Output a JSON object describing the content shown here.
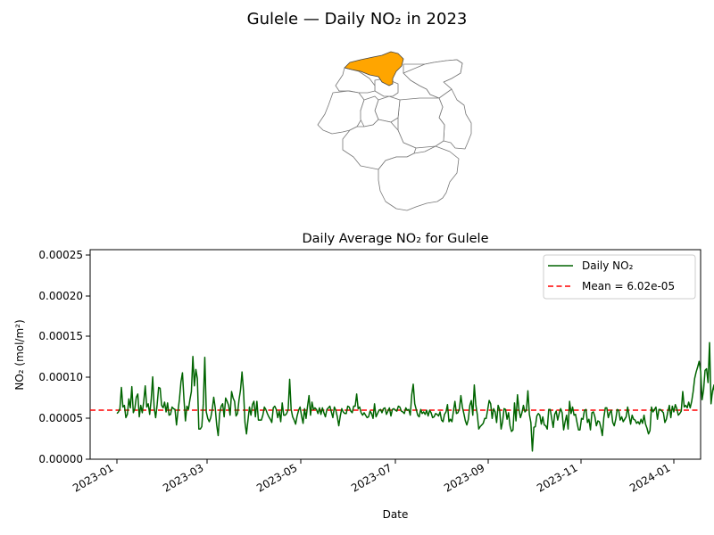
{
  "figure": {
    "suptitle": "Gulele — Daily NO₂ in 2023"
  },
  "map": {
    "highlight_color": "#ffa500",
    "district_fill": "#ffffff",
    "district_edge": "#777777"
  },
  "chart_data": {
    "type": "line",
    "title": "Daily Average NO₂ for Gulele",
    "xlabel": "Date",
    "ylabel": "NO₂ (mol/m²)",
    "x_ticks": [
      "2023-01",
      "2023-03",
      "2023-05",
      "2023-07",
      "2023-09",
      "2023-11",
      "2024-01"
    ],
    "y_ticks": [
      "0.00000",
      "0.00005",
      "0.00010",
      "0.00015",
      "0.00020",
      "0.00025"
    ],
    "xlim": [
      "2022-12-14",
      "2024-01-28"
    ],
    "ylim": [
      0,
      0.000257
    ],
    "grid": false,
    "legend_position": "upper right",
    "series": [
      {
        "name": "Daily NO₂",
        "color": "#006400",
        "start_date": "2023-01-01",
        "values": [
          5.6e-05,
          5.8e-05,
          6.2e-05,
          8.8e-05,
          6.4e-05,
          6.6e-05,
          5.1e-05,
          5.5e-05,
          7.4e-05,
          6.3e-05,
          8.9e-05,
          5.7e-05,
          6.2e-05,
          7.6e-05,
          8e-05,
          5.2e-05,
          6.6e-05,
          5.7e-05,
          7.1e-05,
          9e-05,
          6.4e-05,
          6.8e-05,
          5.5e-05,
          7.3e-05,
          0.000101,
          6.3e-05,
          5.1e-05,
          6.7e-05,
          8.8e-05,
          8.7e-05,
          6.6e-05,
          6.3e-05,
          7e-05,
          5.8e-05,
          6.9e-05,
          5.4e-05,
          5.5e-05,
          6.4e-05,
          6.2e-05,
          6.1e-05,
          4.2e-05,
          5.9e-05,
          7.4e-05,
          9.5e-05,
          0.000106,
          7.4e-05,
          4.7e-05,
          6.5e-05,
          6.1e-05,
          7.3e-05,
          8.3e-05,
          0.000126,
          9e-05,
          0.00011,
          9.9e-05,
          3.7e-05,
          3.7e-05,
          4e-05,
          6.8e-05,
          0.000125,
          5.8e-05,
          5e-05,
          4.6e-05,
          5.1e-05,
          6.1e-05,
          7.6e-05,
          6.3e-05,
          4.2e-05,
          2.9e-05,
          5.6e-05,
          6.5e-05,
          6.8e-05,
          5.2e-05,
          7.5e-05,
          7.1e-05,
          6.6e-05,
          5.4e-05,
          8.3e-05,
          7.5e-05,
          7.1e-05,
          5.3e-05,
          5.6e-05,
          7.3e-05,
          8.5e-05,
          0.000107,
          8.4e-05,
          4.5e-05,
          3.1e-05,
          4.8e-05,
          6.4e-05,
          5.4e-05,
          6.7e-05,
          7.1e-05,
          5.2e-05,
          7.1e-05,
          4.8e-05,
          4.8e-05,
          4.8e-05,
          5.4e-05,
          6.4e-05,
          6.1e-05,
          5.6e-05,
          5.2e-05,
          4.9e-05,
          4.5e-05,
          6.3e-05,
          6.5e-05,
          6.1e-05,
          5.1e-05,
          5.9e-05,
          4.6e-05,
          6.9e-05,
          5.4e-05,
          5.4e-05,
          5.6e-05,
          6.1e-05,
          9.8e-05,
          6.1e-05,
          5.2e-05,
          4.8e-05,
          4.3e-05,
          5.3e-05,
          6e-05,
          6.4e-05,
          5.3e-05,
          4.4e-05,
          6.2e-05,
          5e-05,
          6.5e-05,
          7.8e-05,
          5.4e-05,
          7e-05,
          6.1e-05,
          6.3e-05,
          6.1e-05,
          5.6e-05,
          6.3e-05,
          5.5e-05,
          6.3e-05,
          5.7e-05,
          5.2e-05,
          6.1e-05,
          6.3e-05,
          6.5e-05,
          5.8e-05,
          5.1e-05,
          6.4e-05,
          6e-05,
          5.2e-05,
          4.1e-05,
          5.3e-05,
          6.2e-05,
          5.8e-05,
          5.6e-05,
          5.6e-05,
          6.5e-05,
          6.4e-05,
          5.9e-05,
          5.7e-05,
          6.5e-05,
          6.5e-05,
          8e-05,
          6.2e-05,
          6.4e-05,
          5.7e-05,
          5.4e-05,
          5.7e-05,
          5.4e-05,
          5.1e-05,
          5.2e-05,
          5.9e-05,
          5.6e-05,
          5e-05,
          6.8e-05,
          5.2e-05,
          5.6e-05,
          6e-05,
          6.1e-05,
          5.7e-05,
          6.2e-05,
          6.3e-05,
          5.5e-05,
          5.9e-05,
          6.3e-05,
          5.3e-05,
          6.1e-05,
          6.2e-05,
          6e-05,
          5.9e-05,
          6.5e-05,
          6.4e-05,
          5.9e-05,
          5.8e-05,
          5.6e-05,
          6.3e-05,
          6e-05,
          6.1e-05,
          5.4e-05,
          7.9e-05,
          9.2e-05,
          6.8e-05,
          6.1e-05,
          5.4e-05,
          5.2e-05,
          6.1e-05,
          5.6e-05,
          5.8e-05,
          5.5e-05,
          6e-05,
          5.3e-05,
          6e-05,
          5.7e-05,
          5.1e-05,
          5.2e-05,
          5.6e-05,
          5.5e-05,
          5.3e-05,
          5.8e-05,
          4.8e-05,
          4.6e-05,
          5.5e-05,
          5.8e-05,
          6.7e-05,
          4.6e-05,
          4.9e-05,
          4.6e-05,
          5.9e-05,
          7.1e-05,
          5.6e-05,
          5.7e-05,
          6.2e-05,
          7.8e-05,
          6.4e-05,
          5.6e-05,
          4.7e-05,
          4.2e-05,
          4.9e-05,
          6.6e-05,
          7.2e-05,
          5.4e-05,
          9.1e-05,
          6.7e-05,
          5.5e-05,
          3.7e-05,
          4e-05,
          4.2e-05,
          4.4e-05,
          5e-05,
          5e-05,
          6.1e-05,
          7.2e-05,
          6.8e-05,
          5e-05,
          6.2e-05,
          5.8e-05,
          4.5e-05,
          6.6e-05,
          6.1e-05,
          3.7e-05,
          4.6e-05,
          6.2e-05,
          6.1e-05,
          4.9e-05,
          5.7e-05,
          4.1e-05,
          3.4e-05,
          3.6e-05,
          6.9e-05,
          4.7e-05,
          7.9e-05,
          6.1e-05,
          5.1e-05,
          5.7e-05,
          6.6e-05,
          5.8e-05,
          6e-05,
          8.4e-05,
          5.5e-05,
          4.5e-05,
          1e-05,
          3.9e-05,
          4e-05,
          5.3e-05,
          5.6e-05,
          5.4e-05,
          4.3e-05,
          5.2e-05,
          4.2e-05,
          4.1e-05,
          3.7e-05,
          6.1e-05,
          6.1e-05,
          5e-05,
          3.9e-05,
          5.5e-05,
          5.9e-05,
          4.8e-05,
          5.6e-05,
          6.2e-05,
          5.7e-05,
          3.6e-05,
          4.6e-05,
          5.4e-05,
          3.7e-05,
          7.1e-05,
          5.6e-05,
          6.4e-05,
          5.4e-05,
          5.5e-05,
          4.5e-05,
          3.6e-05,
          3.6e-05,
          5e-05,
          4.9e-05,
          6e-05,
          6.1e-05,
          4.5e-05,
          4.9e-05,
          3.6e-05,
          5.7e-05,
          5.8e-05,
          5.2e-05,
          4.1e-05,
          4.7e-05,
          4.6e-05,
          3.9e-05,
          2.9e-05,
          5.1e-05,
          6.3e-05,
          6.3e-05,
          5.1e-05,
          5.7e-05,
          6e-05,
          4.5e-05,
          4.1e-05,
          4.9e-05,
          6.1e-05,
          6e-05,
          4.8e-05,
          5.2e-05,
          4.6e-05,
          4.9e-05,
          5.2e-05,
          6.4e-05,
          5.3e-05,
          4.3e-05,
          5.4e-05,
          4.9e-05,
          4.8e-05,
          4.4e-05,
          4.6e-05,
          4.3e-05,
          4.9e-05,
          4.4e-05,
          5.4e-05,
          4.3e-05,
          3.8e-05,
          3.1e-05,
          3.5e-05,
          6.4e-05,
          5.8e-05,
          6.1e-05,
          6.4e-05,
          4.9e-05,
          6.1e-05,
          6.1e-05,
          5.9e-05,
          5.7e-05,
          4.5e-05,
          4.9e-05,
          5.8e-05,
          6.6e-05,
          5.1e-05,
          6.5e-05,
          5.8e-05,
          6.7e-05,
          6.2e-05,
          5.4e-05,
          5.6e-05,
          5.9e-05,
          8.3e-05,
          6.4e-05,
          6.6e-05,
          6.3e-05,
          7e-05,
          6.3e-05,
          7.1e-05,
          8.3e-05,
          9.9e-05,
          0.000107,
          0.000113,
          0.00012,
          0.000108,
          7.3e-05,
          8.5e-05,
          0.000109,
          0.000111,
          9.4e-05,
          0.000143,
          6.8e-05,
          8.4e-05,
          9.1e-05,
          6.3e-05,
          5.8e-05,
          6.1e-05,
          6.1e-05,
          6.3e-05,
          5.4e-05,
          5.8e-05,
          0.000109,
          7.9e-05,
          6.6e-05,
          5.6e-05,
          6.1e-05,
          9.4e-05,
          6.8e-05,
          5.9e-05,
          5.9e-05,
          5.2e-05,
          5e-05,
          5.2e-05,
          0.000101
        ]
      }
    ],
    "mean": {
      "value": 6.02e-05,
      "label": "Mean = 6.02e-05",
      "color": "#ff0000"
    }
  }
}
